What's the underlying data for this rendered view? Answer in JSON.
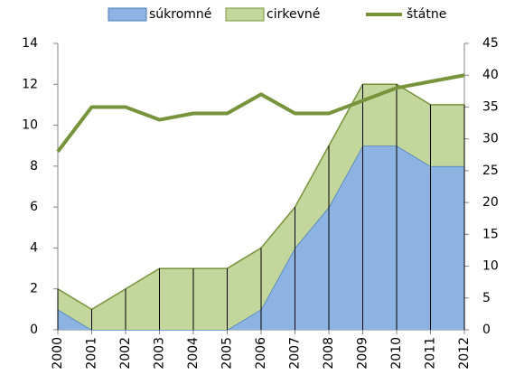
{
  "chart_data": {
    "type": "area",
    "stacked": true,
    "categories": [
      "2000",
      "2001",
      "2002",
      "2003",
      "2004",
      "2005",
      "2006",
      "2007",
      "2008",
      "2009",
      "2010",
      "2011",
      "2012"
    ],
    "series": [
      {
        "name": "súkromné",
        "color": "#8db3e2",
        "values": [
          1,
          0,
          0,
          0,
          0,
          0,
          1,
          4,
          6,
          9,
          9,
          8,
          8
        ]
      },
      {
        "name": "cirkevné",
        "color": "#c3d69b",
        "values": [
          1,
          1,
          2,
          3,
          3,
          3,
          3,
          2,
          3,
          3,
          3,
          3,
          3
        ]
      },
      {
        "name": "štátne",
        "color": "#77933c",
        "axis": "y2",
        "values": [
          28,
          35,
          35,
          33,
          34,
          34,
          37,
          34,
          34,
          36,
          38,
          39,
          40
        ]
      }
    ],
    "ylim": [
      0,
      14
    ],
    "yticks": [
      0,
      2,
      4,
      6,
      8,
      10,
      12,
      14
    ],
    "y2lim": [
      0,
      45
    ],
    "y2ticks": [
      0,
      5,
      10,
      15,
      20,
      25,
      30,
      35,
      40,
      45
    ],
    "legend": "top"
  }
}
